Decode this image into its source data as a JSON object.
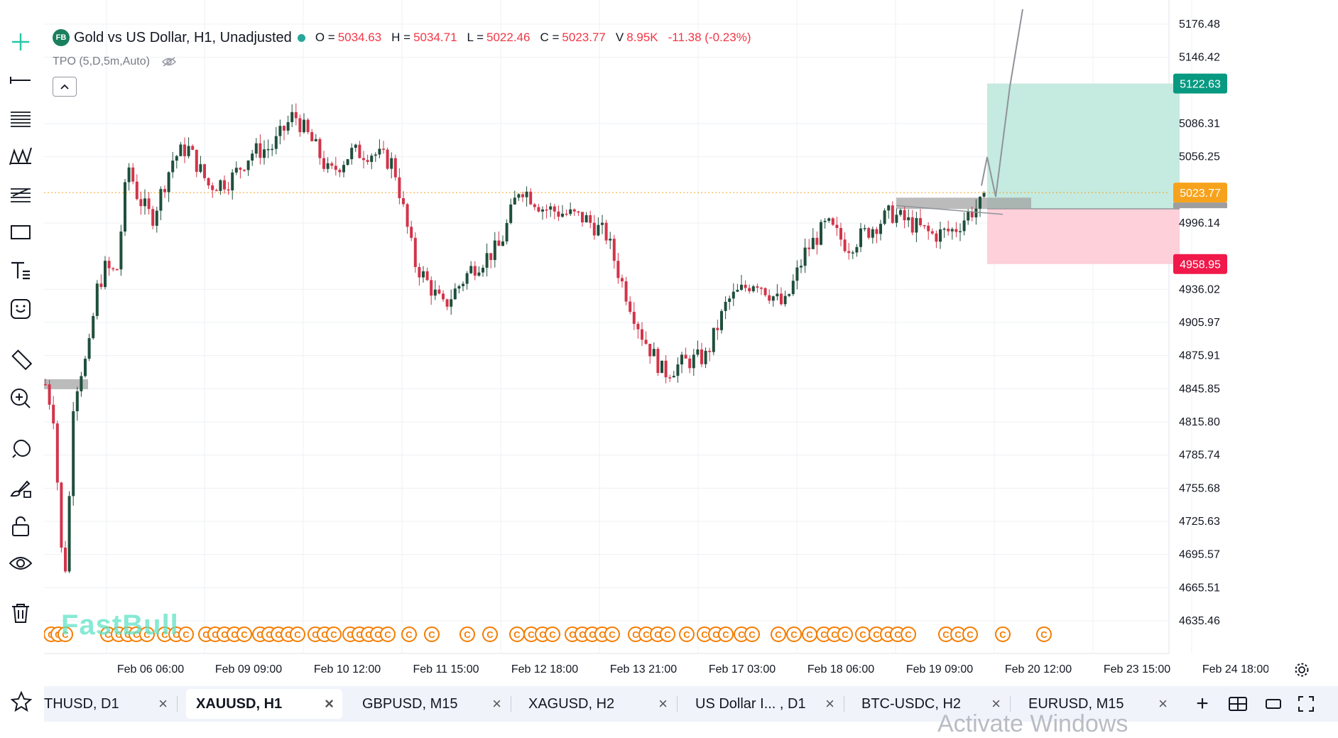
{
  "legend": {
    "symbol_badge": "FB",
    "title": "Gold vs US Dollar, H1, Unadjusted",
    "open_label": "O =",
    "open_value": "5034.63",
    "high_label": "H =",
    "high_value": "5034.71",
    "low_label": "L =",
    "low_value": "5022.46",
    "close_label": "C =",
    "close_value": "5023.77",
    "volume_label": "V",
    "volume_value": "8.95K",
    "change": "-11.38 (-0.23%)"
  },
  "indicator": {
    "label": "TPO (5,D,5m,Auto)",
    "icon": "eye-off-icon"
  },
  "watermark": "FastBull",
  "colors": {
    "up": "#1f4f3c",
    "down": "#d2344a",
    "target_zone": "#c5eadf",
    "stop_zone": "#fdd0da",
    "tp_badge": "#089981",
    "sl_badge": "#f0194a",
    "last_price_badge": "#f7a21c",
    "event_marker": "#f57c00"
  },
  "price_axis": {
    "ticks": [
      "5176.48",
      "5146.42",
      "5086.31",
      "5056.25",
      "4996.14",
      "4936.02",
      "4905.97",
      "4875.91",
      "4845.85",
      "4815.80",
      "4785.74",
      "4755.68",
      "4725.63",
      "4695.57",
      "4665.51",
      "4635.46"
    ],
    "take_profit": "5122.63",
    "last_price": "5023.77",
    "stop_loss": "4958.95"
  },
  "time_axis": {
    "ticks": [
      "Feb 06 06:00",
      "Feb 09 09:00",
      "Feb 10 12:00",
      "Feb 11 15:00",
      "Feb 12 18:00",
      "Feb 13 21:00",
      "Feb 17 03:00",
      "Feb 18 06:00",
      "Feb 19 09:00",
      "Feb 20 12:00",
      "Feb 23 15:00",
      "Feb 24 18:00"
    ]
  },
  "event_marker_glyph": "C",
  "toolbar_icons": [
    "crosshair-icon",
    "line-icon",
    "fib-icon",
    "pattern-icon",
    "forecast-icon",
    "rectangle-icon",
    "text-icon",
    "emoji-icon",
    "ruler-icon",
    "zoom-in-icon",
    "magnet-icon",
    "lock-drawing-icon",
    "lock-icon",
    "eye-icon",
    "trash-icon"
  ],
  "tabs": [
    {
      "label": "THUSD, D1",
      "close": "×"
    },
    {
      "label": "XAUUSD, H1",
      "close": "×",
      "active": true
    },
    {
      "label": "GBPUSD, M15",
      "close": "×"
    },
    {
      "label": "XAGUSD, H2",
      "close": "×"
    },
    {
      "label": "US Dollar I... , D1",
      "close": "×"
    },
    {
      "label": "BTC-USDC, H2",
      "close": "×"
    },
    {
      "label": "EURUSD, M15",
      "close": "×"
    }
  ],
  "bottom_buttons": {
    "add": "+"
  },
  "os_overlay": "Activate Windows"
}
